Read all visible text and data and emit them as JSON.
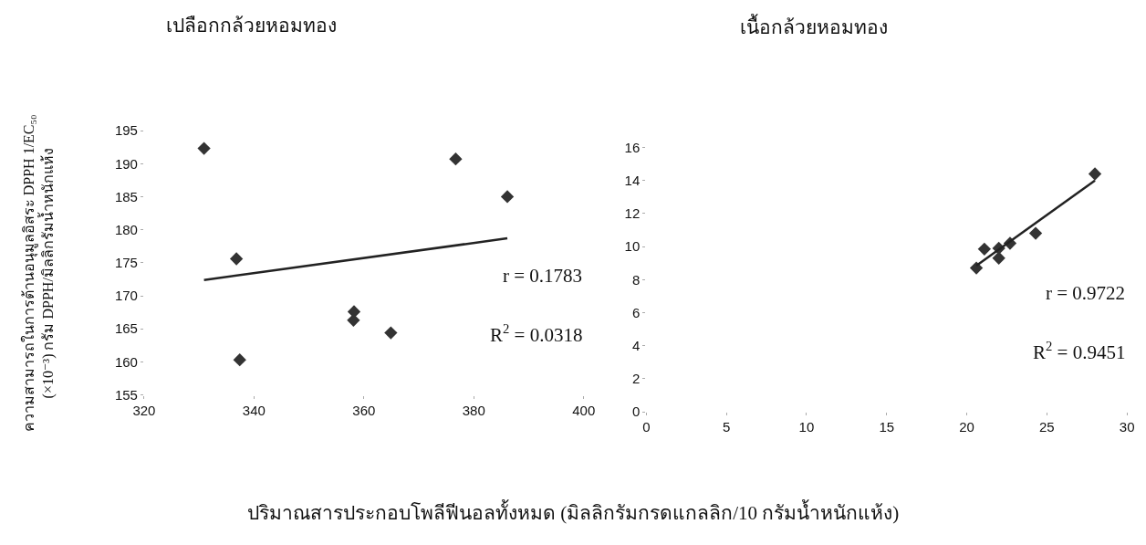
{
  "chart_data": [
    {
      "type": "scatter",
      "title": "เปลือกกล้วยหอมทอง",
      "xlabel": "ปริมาณสารประกอบโพลีฟีนอลทั้งหมด (มิลลิกรัมกรดแกลลิก/10 กรัมน้ำหนักแห้ง)",
      "ylabel": "ความสามารถในการต้านอนุมูลอิสระ DPPH 1/EC₅₀\n(×10⁻³) กรัม DPPH/มิลลิกรัมน้ำหนักแห้ง",
      "xlim": [
        320,
        400
      ],
      "xticks": [
        320,
        340,
        360,
        380,
        400
      ],
      "ylim": [
        155,
        195
      ],
      "yticks": [
        155,
        160,
        165,
        170,
        175,
        180,
        185,
        190,
        195
      ],
      "series": [
        {
          "marker": "diamond",
          "color": "#333333",
          "x": [
            330.9,
            336.8,
            337.4,
            358.2,
            358.1,
            364.9,
            376.7,
            386.1
          ],
          "values": [
            192.3,
            175.6,
            160.3,
            167.6,
            166.3,
            164.4,
            190.7,
            185.0
          ]
        },
        {
          "type": "line",
          "color": "#222222",
          "x": [
            330.9,
            386.1
          ],
          "values": [
            172.4,
            178.7
          ]
        }
      ],
      "annotations": [
        "r = 0.1783",
        "R$^{2}$ = 0.0318"
      ]
    },
    {
      "type": "scatter",
      "title": "เนื้อกล้วยหอมทอง",
      "xlim": [
        0,
        30
      ],
      "xticks": [
        0,
        5,
        10,
        15,
        20,
        25,
        30
      ],
      "ylim": [
        0,
        16
      ],
      "yticks": [
        0,
        2,
        4,
        6,
        8,
        10,
        12,
        14,
        16
      ],
      "series": [
        {
          "marker": "diamond",
          "color": "#333333",
          "x": [
            20.6,
            21.1,
            22.0,
            22.0,
            22.7,
            24.3,
            28.0
          ],
          "values": [
            8.7,
            9.85,
            9.9,
            9.3,
            10.2,
            10.8,
            14.4
          ]
        },
        {
          "type": "line",
          "color": "#222222",
          "x": [
            20.6,
            28.0
          ],
          "values": [
            8.85,
            14.0
          ]
        }
      ],
      "annotations": [
        "r = 0.9722",
        "R$^{2}$ = 0.9451"
      ]
    }
  ]
}
